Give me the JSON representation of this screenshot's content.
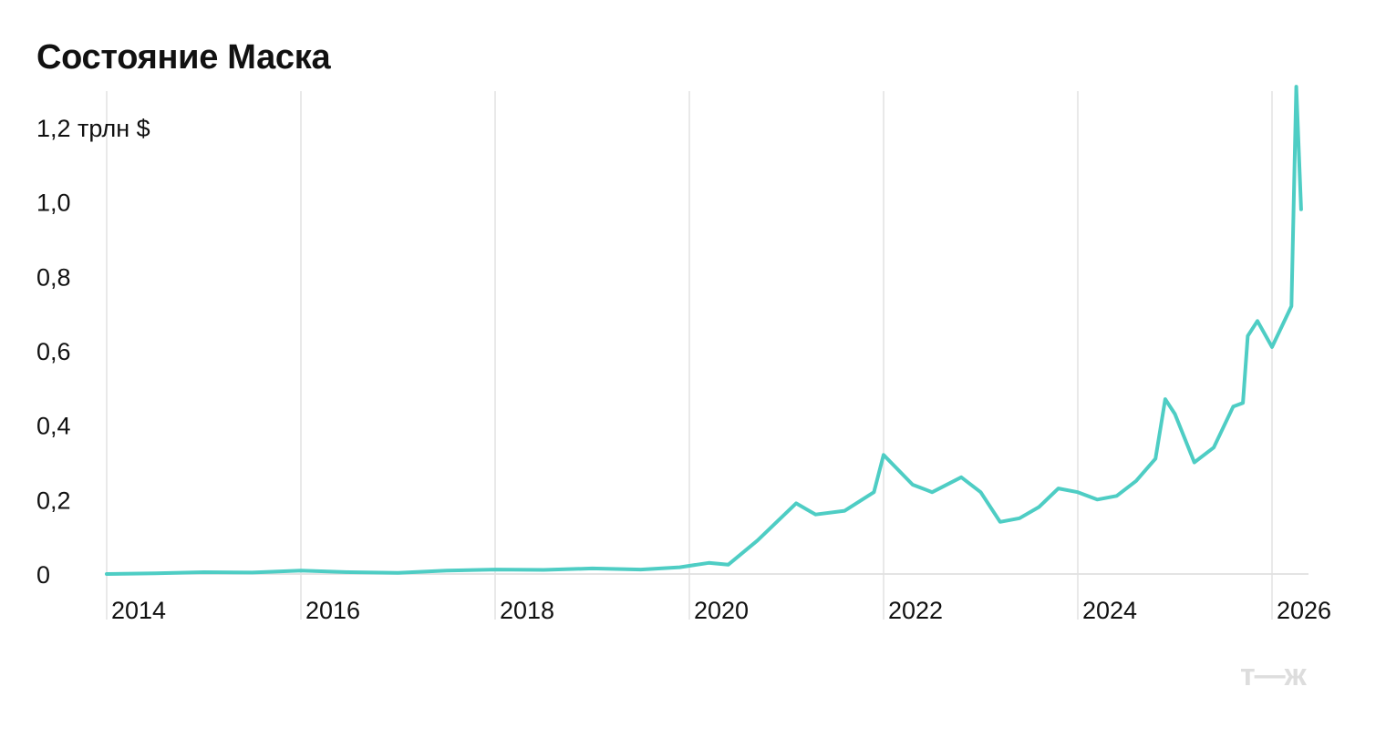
{
  "chart_data": {
    "type": "line",
    "title": "Состояние Маска",
    "y_unit_label": "1,2 трлн $",
    "yticks": [
      {
        "value": 0,
        "label": "0"
      },
      {
        "value": 0.2,
        "label": "0,2"
      },
      {
        "value": 0.4,
        "label": "0,4"
      },
      {
        "value": 0.6,
        "label": "0,6"
      },
      {
        "value": 0.8,
        "label": "0,8"
      },
      {
        "value": 1.0,
        "label": "1,0"
      },
      {
        "value": 1.2,
        "label": "1,2 трлн $"
      }
    ],
    "xticks": [
      {
        "value": 2014,
        "label": "2014"
      },
      {
        "value": 2016,
        "label": "2016"
      },
      {
        "value": 2018,
        "label": "2018"
      },
      {
        "value": 2020,
        "label": "2020"
      },
      {
        "value": 2022,
        "label": "2022"
      },
      {
        "value": 2024,
        "label": "2024"
      },
      {
        "value": 2026,
        "label": "2026"
      }
    ],
    "xlim": [
      2014,
      2026.4
    ],
    "ylim": [
      0,
      1.3
    ],
    "grid": "vertical",
    "line_color": "#4ecdc4",
    "series": [
      {
        "points": [
          [
            2014.0,
            0.0
          ],
          [
            2014.5,
            0.002
          ],
          [
            2015.0,
            0.005
          ],
          [
            2015.5,
            0.004
          ],
          [
            2016.0,
            0.009
          ],
          [
            2016.5,
            0.005
          ],
          [
            2017.0,
            0.003
          ],
          [
            2017.5,
            0.009
          ],
          [
            2018.0,
            0.012
          ],
          [
            2018.5,
            0.011
          ],
          [
            2019.0,
            0.015
          ],
          [
            2019.5,
            0.012
          ],
          [
            2019.9,
            0.018
          ],
          [
            2020.2,
            0.03
          ],
          [
            2020.4,
            0.025
          ],
          [
            2020.7,
            0.09
          ],
          [
            2020.9,
            0.14
          ],
          [
            2021.1,
            0.19
          ],
          [
            2021.3,
            0.16
          ],
          [
            2021.6,
            0.17
          ],
          [
            2021.9,
            0.22
          ],
          [
            2022.0,
            0.32
          ],
          [
            2022.3,
            0.24
          ],
          [
            2022.5,
            0.22
          ],
          [
            2022.8,
            0.26
          ],
          [
            2023.0,
            0.22
          ],
          [
            2023.2,
            0.14
          ],
          [
            2023.4,
            0.15
          ],
          [
            2023.6,
            0.18
          ],
          [
            2023.8,
            0.23
          ],
          [
            2024.0,
            0.22
          ],
          [
            2024.2,
            0.2
          ],
          [
            2024.4,
            0.21
          ],
          [
            2024.6,
            0.25
          ],
          [
            2024.8,
            0.31
          ],
          [
            2024.9,
            0.47
          ],
          [
            2025.0,
            0.43
          ],
          [
            2025.2,
            0.3
          ],
          [
            2025.4,
            0.34
          ],
          [
            2025.6,
            0.45
          ],
          [
            2025.7,
            0.46
          ],
          [
            2025.75,
            0.64
          ],
          [
            2025.85,
            0.68
          ],
          [
            2026.0,
            0.61
          ],
          [
            2026.2,
            0.72
          ],
          [
            2026.25,
            1.31
          ],
          [
            2026.3,
            0.98
          ]
        ]
      }
    ]
  },
  "logo": {
    "text": "т—ж"
  }
}
